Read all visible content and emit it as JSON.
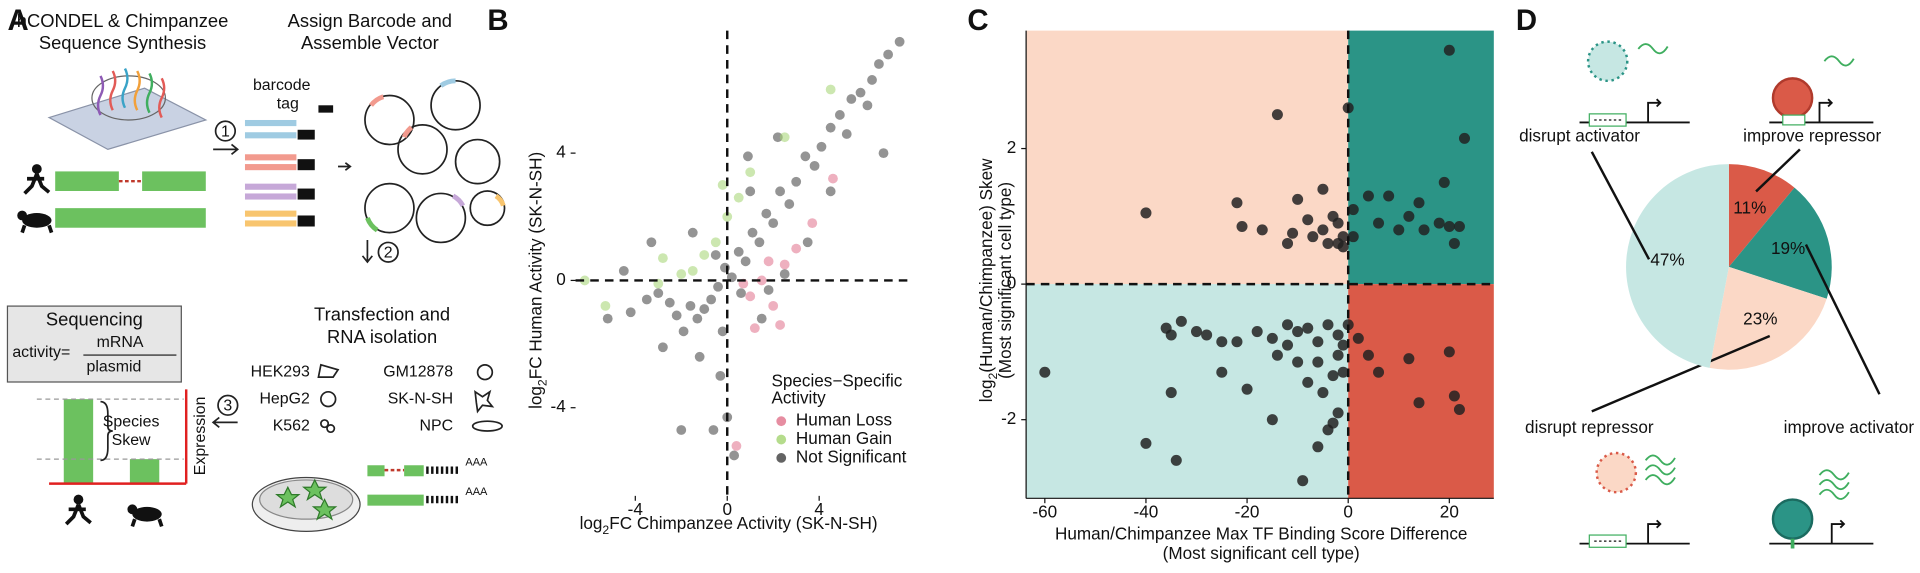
{
  "panel_a": {
    "letter": "A",
    "synthesis_title": [
      "hCONDEL & Chimpanzee",
      "Sequence Synthesis"
    ],
    "assemble_title": [
      "Assign Barcode and",
      "Assemble Vector"
    ],
    "barcode_label": [
      "barcode",
      "tag"
    ],
    "steps": [
      "1",
      "2",
      "3"
    ],
    "transfection_title": [
      "Transfection and",
      "RNA isolation"
    ],
    "cell_lines": [
      "HEK293",
      "GM12878",
      "HepG2",
      "SK-N-SH",
      "K562",
      "NPC"
    ],
    "sequencing_title": "Sequencing",
    "activity_label": "activity=",
    "numerator": "mRNA",
    "denominator": "plasmid",
    "skew_label": [
      "Species",
      "Skew"
    ],
    "expression_label": "Expression",
    "polya": "AAA"
  },
  "chart_data": [
    {
      "type": "scatter",
      "panel": "B",
      "xlabel": {
        "prefix": "log",
        "sub": "2",
        "text": "FC Chimpanzee Activity (SK-N-SH)"
      },
      "ylabel": {
        "prefix": "log",
        "sub": "2",
        "text": "FC Human Activity (SK-N-SH)"
      },
      "xlim": [
        -6.6,
        8.05
      ],
      "ylim": [
        -6.77,
        7.85
      ],
      "xticks": [
        -4,
        0,
        4
      ],
      "yticks": [
        -4,
        0,
        4
      ],
      "reference_lines": {
        "x": 0,
        "y": 0
      },
      "legend_title": [
        "Species−Specific",
        "Activity"
      ],
      "legend_position": "bottom-right",
      "series": [
        {
          "name": "Human Loss",
          "color": "#e0708a",
          "x": [
            1,
            1.5,
            2,
            2.5,
            3,
            1.2,
            0.7,
            3.7,
            4.6,
            2.3,
            0.4,
            1.8
          ],
          "values": [
            -0.5,
            0,
            -0.8,
            0.5,
            1,
            -1.5,
            -0.1,
            1.8,
            3.2,
            -1.4,
            -5.2,
            0.6
          ]
        },
        {
          "name": "Human Gain",
          "color": "#a3d36f",
          "x": [
            -0.5,
            -1,
            0,
            0.5,
            -1.5,
            -2,
            1,
            -6.2,
            -5.3,
            -2.8,
            2.5,
            4.5,
            -0.2,
            -3
          ],
          "values": [
            1.2,
            0.8,
            2,
            2.6,
            0.3,
            0.2,
            3.4,
            0,
            -0.8,
            0.7,
            4.5,
            6,
            3,
            -0.1
          ]
        },
        {
          "name": "Not Significant",
          "color": "#3c3c3c",
          "x": [
            7.5,
            7,
            6.6,
            6.3,
            5.8,
            6.1,
            5.4,
            4.9,
            5.2,
            4.5,
            4.1,
            3.8,
            3.4,
            3,
            2.7,
            2.3,
            2,
            1.7,
            1.4,
            1.1,
            0.8,
            0.5,
            0.2,
            -0.1,
            -0.4,
            -0.7,
            -1,
            -1.3,
            -1.6,
            -1.9,
            -2.2,
            -2.5,
            -3,
            -3.5,
            -4.2,
            -5.2,
            -2.8,
            -1.2,
            -0.3,
            0,
            -0.6,
            0.3,
            -2,
            1.5,
            2.5,
            3.5,
            0.6,
            -0.5,
            1,
            -1.5,
            4.5,
            6.8,
            2.2,
            -3.3,
            0.9,
            -0.2,
            1.8,
            -4.5
          ],
          "values": [
            7.5,
            7.1,
            6.8,
            6.3,
            5.9,
            5.5,
            5.7,
            5.2,
            4.6,
            4.8,
            4.2,
            3.6,
            3.9,
            3.1,
            2.4,
            2.8,
            1.8,
            2.1,
            1.2,
            1.5,
            0.6,
            0.9,
            0.1,
            0.4,
            -0.2,
            -0.6,
            -0.9,
            -1.2,
            -0.8,
            -1.6,
            -1.1,
            -0.7,
            -0.4,
            -0.6,
            -1,
            -1.2,
            -2.1,
            -2.4,
            -3,
            -4.3,
            -4.7,
            -5.5,
            -4.7,
            -1.2,
            0.2,
            1.2,
            -0.4,
            0.8,
            2.8,
            1.5,
            2.8,
            4,
            4.5,
            1.2,
            3.9,
            -1.6,
            -0.3,
            0.3
          ]
        }
      ]
    },
    {
      "type": "scatter",
      "panel": "C",
      "xlabel": [
        "Human/Chimpanzee Max TF Binding Score Difference",
        "(Most significant cell type)"
      ],
      "ylabel": {
        "prefix": "log",
        "sub": "2",
        "text": "(Human/Chimpanzee) Skew",
        "line2": "(Most significant cell type)"
      },
      "xlim": [
        -63.7,
        28.8
      ],
      "ylim": [
        -3.16,
        3.74
      ],
      "xticks": [
        -60,
        -40,
        -20,
        0,
        20
      ],
      "yticks": [
        -2,
        0,
        2
      ],
      "reference_lines": {
        "x": 0,
        "y": 0
      },
      "axis_lines": true,
      "quadrant_colors": {
        "upper_left": "#fbd8c6",
        "upper_right": "#2b9486",
        "lower_left": "#c6e7e3",
        "lower_right": "#da5a48"
      },
      "point_color": "#222222",
      "x": [
        -40,
        -22,
        -21,
        -17,
        -10,
        -8,
        -5,
        -5,
        -3,
        -2,
        -4,
        -7,
        -11,
        -12,
        -2,
        0,
        -14,
        -1,
        1,
        4,
        6,
        8,
        10,
        12,
        14,
        15,
        18,
        19,
        20,
        21,
        22,
        20,
        23,
        1,
        -1,
        -60,
        -36,
        -35,
        -33,
        -30,
        -28,
        -25,
        -22,
        -18,
        -15,
        -10,
        -8,
        -12,
        -6,
        -4,
        -2,
        0,
        -12,
        -14,
        -10,
        -6,
        -2,
        -3,
        -1,
        -8,
        -5,
        -20,
        -25,
        -35,
        -40,
        -34,
        -3,
        -4,
        -15,
        -6,
        -2,
        -1,
        -9,
        4,
        6,
        12,
        14,
        20,
        21,
        22,
        2
      ],
      "values": [
        1.05,
        1.2,
        0.85,
        0.8,
        1.25,
        0.95,
        1.4,
        0.8,
        1,
        0.9,
        0.6,
        0.7,
        0.75,
        0.6,
        0.6,
        2.6,
        2.5,
        0.7,
        0.7,
        1.3,
        0.9,
        1.3,
        0.8,
        1,
        1.2,
        0.8,
        0.9,
        1.5,
        0.85,
        0.6,
        0.85,
        3.45,
        2.15,
        1.1,
        0.55,
        -1.3,
        -0.65,
        -0.75,
        -0.55,
        -0.7,
        -0.75,
        -0.85,
        -0.85,
        -0.7,
        -0.8,
        -0.7,
        -0.65,
        -0.6,
        -0.85,
        -0.6,
        -0.75,
        -0.6,
        -0.9,
        -1.05,
        -1.15,
        -1.15,
        -1.05,
        -1.35,
        -1.3,
        -1.45,
        -1.6,
        -1.55,
        -1.3,
        -1.6,
        -2.35,
        -2.6,
        -2.05,
        -2.15,
        -2,
        -2.4,
        -1.9,
        -0.9,
        -2.9,
        -1.05,
        -1.3,
        -1.1,
        -1.75,
        -1,
        -1.65,
        -1.85,
        -0.8
      ]
    },
    {
      "type": "pie",
      "panel": "D",
      "categories": [
        "improve repressor",
        "improve activator",
        "disrupt repressor",
        "disrupt activator"
      ],
      "values": [
        11,
        19,
        23,
        47
      ],
      "value_labels": [
        "11%",
        "19%",
        "23%",
        "47%"
      ],
      "colors": [
        "#da5a48",
        "#2b9486",
        "#fbd8c6",
        "#c6e7e3"
      ]
    }
  ]
}
